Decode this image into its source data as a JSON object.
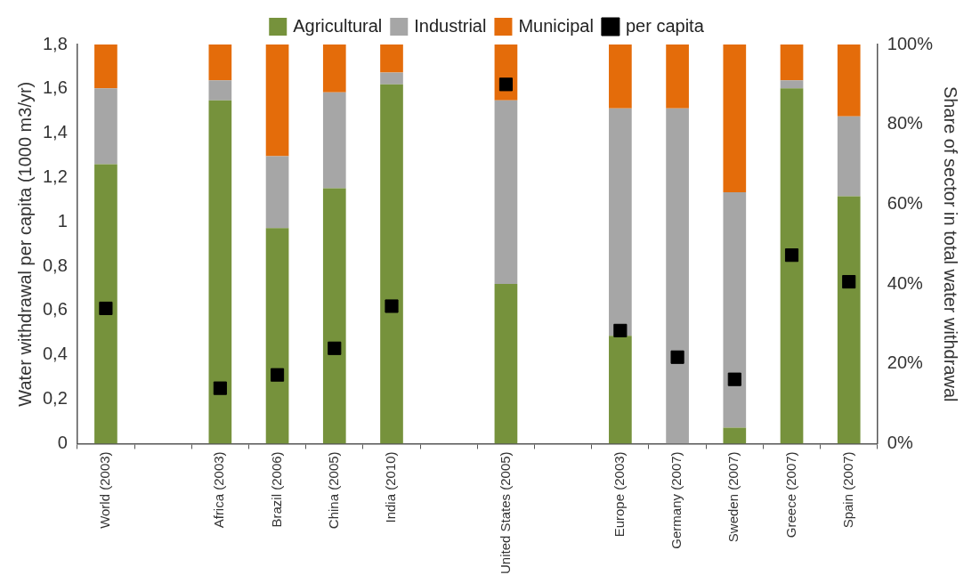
{
  "chart_data": {
    "type": "bar",
    "stacked": true,
    "ylabel": "Water withdrawal per capita (1000 m3/yr)",
    "y2label": "Share of sector in total water withdrawal",
    "categories": [
      "World (2003)",
      null,
      "Africa (2003)",
      "Brazil (2006)",
      "China (2005)",
      "India (2010)",
      null,
      "United States (2005)",
      null,
      "Europe (2003)",
      "Germany (2007)",
      "Sweden (2007)",
      "Greece (2007)",
      "Spain (2007)"
    ],
    "series": [
      {
        "name": "Agricultural",
        "color": "#76923c",
        "axis": "y2",
        "values": [
          70,
          null,
          86,
          54,
          64,
          90,
          null,
          40,
          null,
          27,
          0,
          4,
          89,
          62
        ]
      },
      {
        "name": "Industrial",
        "color": "#a6a6a6",
        "axis": "y2",
        "values": [
          19,
          null,
          5,
          18,
          24,
          3,
          null,
          46,
          null,
          57,
          84,
          59,
          2,
          20
        ]
      },
      {
        "name": "Municipal",
        "color": "#e46c0a",
        "axis": "y2",
        "values": [
          11,
          null,
          9,
          28,
          12,
          7,
          null,
          14,
          null,
          16,
          16,
          37,
          9,
          18
        ]
      },
      {
        "name": "per capita",
        "type": "scatter",
        "marker": "square",
        "color": "#000000",
        "axis": "y",
        "values": [
          0.61,
          null,
          0.25,
          0.31,
          0.43,
          0.62,
          null,
          1.62,
          null,
          0.51,
          0.39,
          0.29,
          0.85,
          0.73
        ]
      }
    ],
    "ylim": [
      0,
      1.8
    ],
    "yticks": [
      0,
      {
        "value": 0.2,
        "label": "0,2"
      },
      {
        "value": 0.4,
        "label": "0,4"
      },
      {
        "value": 0.6,
        "label": "0,6"
      },
      {
        "value": 0.8,
        "label": "0,8"
      },
      1,
      {
        "value": 1.2,
        "label": "1,2"
      },
      {
        "value": 1.4,
        "label": "1,4"
      },
      {
        "value": 1.6,
        "label": "1,6"
      },
      {
        "value": 1.8,
        "label": "1,8"
      }
    ],
    "y2lim": [
      0,
      100
    ],
    "y2ticks": [
      {
        "value": 0,
        "label": "0%"
      },
      {
        "value": 20,
        "label": "20%"
      },
      {
        "value": 40,
        "label": "40%"
      },
      {
        "value": 60,
        "label": "60%"
      },
      {
        "value": 80,
        "label": "80%"
      },
      {
        "value": 100,
        "label": "100%"
      }
    ],
    "grid": false,
    "legend": "top"
  }
}
